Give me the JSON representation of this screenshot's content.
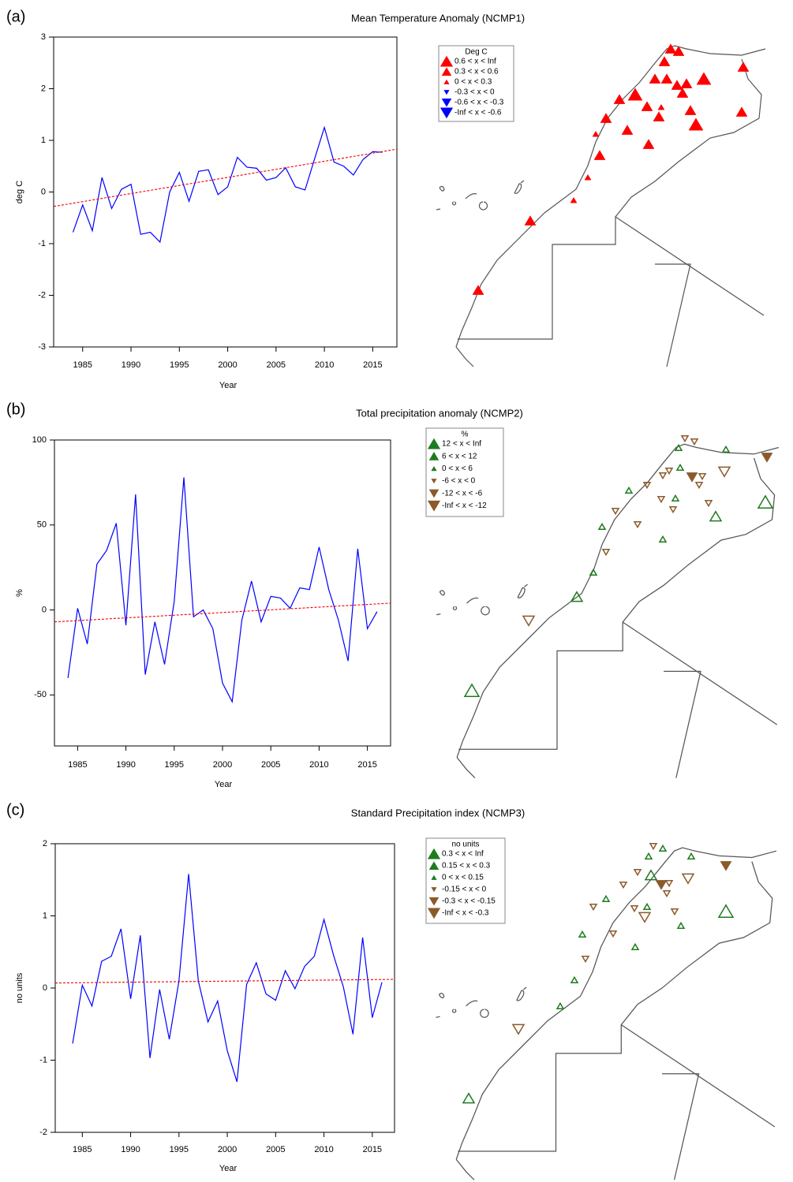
{
  "chart_data": [
    {
      "type": "line",
      "panel_label": "(a)",
      "title": "Mean Temperature Anomaly (NCMP1)",
      "x_label": "Year",
      "y_label": "deg C",
      "x": [
        1984,
        1985,
        1986,
        1987,
        1988,
        1989,
        1990,
        1991,
        1992,
        1993,
        1994,
        1995,
        1996,
        1997,
        1998,
        1999,
        2000,
        2001,
        2002,
        2003,
        2004,
        2005,
        2006,
        2007,
        2008,
        2009,
        2010,
        2011,
        2012,
        2013,
        2014,
        2015,
        2016
      ],
      "series": [
        {
          "color": "#0000ff",
          "values": [
            -0.78,
            -0.25,
            -0.75,
            0.28,
            -0.32,
            0.05,
            0.15,
            -0.82,
            -0.78,
            -0.97,
            0.0,
            0.38,
            -0.18,
            0.4,
            0.43,
            -0.05,
            0.1,
            0.67,
            0.48,
            0.46,
            0.23,
            0.28,
            0.47,
            0.1,
            0.04,
            0.65,
            1.25,
            0.58,
            0.5,
            0.33,
            0.63,
            0.78,
            0.77
          ]
        }
      ],
      "trend": {
        "color": "#ee0000",
        "x": [
          1982,
          2017.5
        ],
        "values": [
          -0.28,
          0.83
        ]
      },
      "xlim": [
        1982,
        2017.5
      ],
      "xticks": [
        1985,
        1990,
        1995,
        2000,
        2005,
        2010,
        2015
      ],
      "ylim": [
        -3,
        3
      ],
      "yticks": [
        -3,
        -2,
        -1,
        0,
        1,
        2,
        3
      ],
      "map_legend": {
        "title": "Deg C",
        "entries": [
          {
            "label": "0.6 < x < Inf",
            "color": "#ff0000",
            "shape": "up"
          },
          {
            "label": "0.3 < x < 0.6",
            "color": "#ff0000",
            "shape": "up"
          },
          {
            "label": "0 < x < 0.3",
            "color": "#ff0000",
            "shape": "up"
          },
          {
            "label": "-0.3 < x < 0",
            "color": "#0000ff",
            "shape": "down"
          },
          {
            "label": "-0.6 < x < -0.3",
            "color": "#0000ff",
            "shape": "down"
          },
          {
            "label": "-Inf < x < -0.6",
            "color": "#0000ff",
            "shape": "down"
          }
        ]
      }
    },
    {
      "type": "line",
      "panel_label": "(b)",
      "title": "Total precipitation anomaly (NCMP2)",
      "x_label": "Year",
      "y_label": "%",
      "x": [
        1984,
        1985,
        1986,
        1987,
        1988,
        1989,
        1990,
        1991,
        1992,
        1993,
        1994,
        1995,
        1996,
        1997,
        1998,
        1999,
        2000,
        2001,
        2002,
        2003,
        2004,
        2005,
        2006,
        2007,
        2008,
        2009,
        2010,
        2011,
        2012,
        2013,
        2014,
        2015,
        2016
      ],
      "series": [
        {
          "color": "#0000ff",
          "values": [
            -40,
            1,
            -20,
            27,
            35,
            51,
            -9,
            68,
            -38,
            -7,
            -32,
            5,
            78,
            -4,
            0,
            -11,
            -43,
            -54,
            -6,
            17,
            -7,
            8,
            7,
            1,
            13,
            12,
            37,
            12,
            -6,
            -30,
            36,
            -11,
            -1
          ]
        }
      ],
      "trend": {
        "color": "#ee0000",
        "x": [
          1982.6,
          2017.4
        ],
        "values": [
          -7,
          4
        ]
      },
      "xlim": [
        1982.6,
        2017.4
      ],
      "xticks": [
        1985,
        1990,
        1995,
        2000,
        2005,
        2010,
        2015
      ],
      "ylim": [
        -80,
        100
      ],
      "yticks": [
        -50,
        0,
        50,
        100
      ],
      "map_legend": {
        "title": "%",
        "entries": [
          {
            "label": "12 < x < Inf",
            "color": "#1e7b1e",
            "shape": "up"
          },
          {
            "label": "6 < x < 12",
            "color": "#1e7b1e",
            "shape": "up"
          },
          {
            "label": "0 < x < 6",
            "color": "#1e7b1e",
            "shape": "up"
          },
          {
            "label": "-6 < x < 0",
            "color": "#8b5a2b",
            "shape": "down"
          },
          {
            "label": "-12 < x < -6",
            "color": "#8b5a2b",
            "shape": "down"
          },
          {
            "label": "-Inf < x < -12",
            "color": "#8b5a2b",
            "shape": "down"
          }
        ]
      }
    },
    {
      "type": "line",
      "panel_label": "(c)",
      "title": "Standard Precipitation index (NCMP3)",
      "x_label": "Year",
      "y_label": "no units",
      "x": [
        1984,
        1985,
        1986,
        1987,
        1988,
        1989,
        1990,
        1991,
        1992,
        1993,
        1994,
        1995,
        1996,
        1997,
        1998,
        1999,
        2000,
        2001,
        2002,
        2003,
        2004,
        2005,
        2006,
        2007,
        2008,
        2009,
        2010,
        2011,
        2012,
        2013,
        2014,
        2015,
        2016
      ],
      "series": [
        {
          "color": "#0000ff",
          "values": [
            -0.77,
            0.04,
            -0.25,
            0.37,
            0.44,
            0.82,
            -0.15,
            0.73,
            -0.97,
            -0.02,
            -0.71,
            0.1,
            1.58,
            0.1,
            -0.47,
            -0.18,
            -0.87,
            -1.3,
            0.05,
            0.35,
            -0.08,
            -0.17,
            0.24,
            -0.01,
            0.3,
            0.44,
            0.95,
            0.45,
            0.02,
            -0.64,
            0.7,
            -0.41,
            0.08
          ]
        }
      ],
      "trend": {
        "color": "#ee0000",
        "x": [
          1982.2,
          2017.3
        ],
        "values": [
          0.07,
          0.12
        ]
      },
      "xlim": [
        1982.2,
        2017.3
      ],
      "xticks": [
        1985,
        1990,
        1995,
        2000,
        2005,
        2010,
        2015
      ],
      "ylim": [
        -2,
        2
      ],
      "yticks": [
        -2,
        -1,
        0,
        1,
        2
      ],
      "map_legend": {
        "title": "no units",
        "entries": [
          {
            "label": "0.3 < x < Inf",
            "color": "#1e7b1e",
            "shape": "up"
          },
          {
            "label": "0.15 < x < 0.3",
            "color": "#1e7b1e",
            "shape": "up"
          },
          {
            "label": "0 < x < 0.15",
            "color": "#1e7b1e",
            "shape": "up"
          },
          {
            "label": "-0.15 < x < 0",
            "color": "#8b5a2b",
            "shape": "down"
          },
          {
            "label": "-0.3 < x < -0.15",
            "color": "#8b5a2b",
            "shape": "down"
          },
          {
            "label": "-Inf < x < -0.3",
            "color": "#8b5a2b",
            "shape": "down"
          }
        ]
      }
    }
  ]
}
